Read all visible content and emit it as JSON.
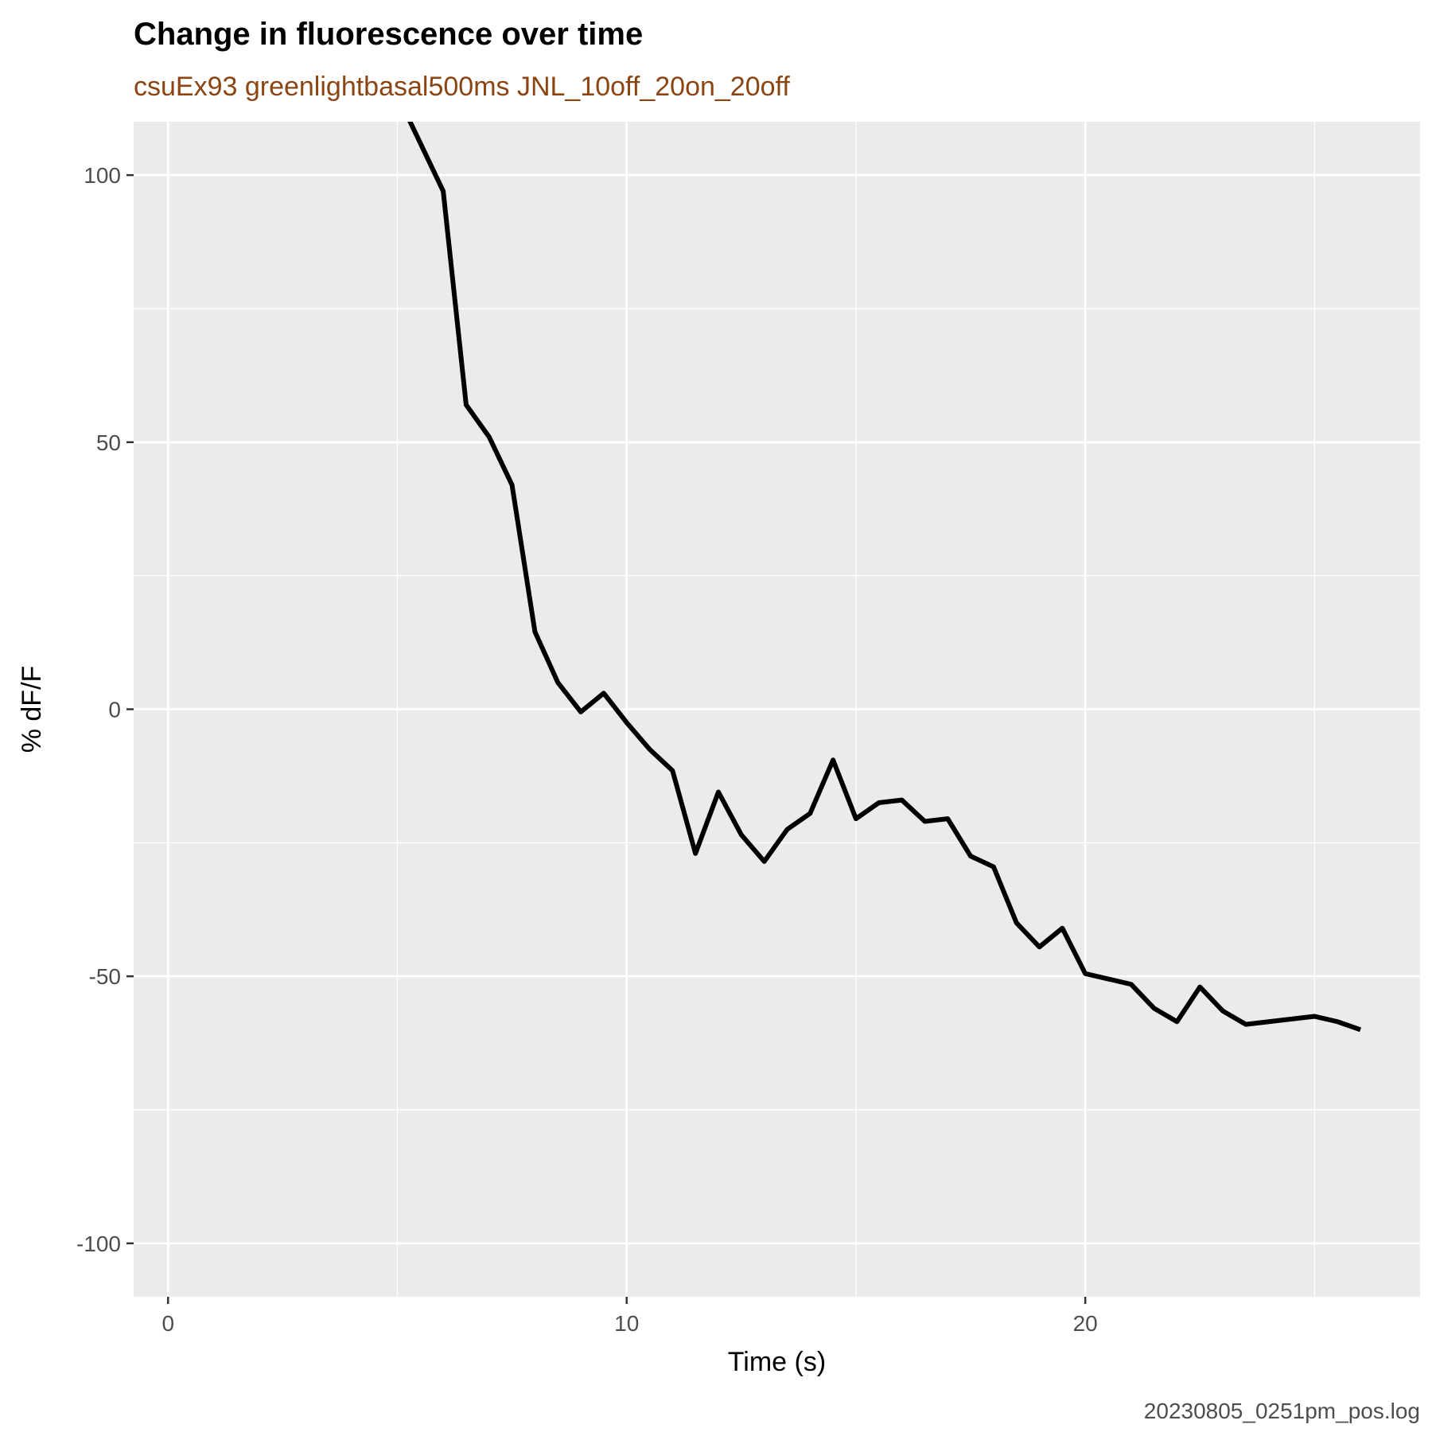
{
  "chart_data": {
    "type": "line",
    "title": "Change in fluorescence over time",
    "subtitle": "csuEx93 greenlightbasal500ms JNL_10off_20on_20off",
    "caption": "20230805_0251pm_pos.log",
    "xlabel": "Time (s)",
    "ylabel": "% dF/F",
    "xlim": [
      -0.75,
      27.3
    ],
    "ylim": [
      -110,
      110
    ],
    "x_ticks": [
      0,
      10,
      20
    ],
    "x_tick_labels": [
      "0",
      "10",
      "20"
    ],
    "x_minor_ticks": [
      5,
      15,
      25
    ],
    "y_ticks": [
      -100,
      -50,
      0,
      50,
      100
    ],
    "y_tick_labels": [
      "-100",
      "-50",
      "0",
      "50",
      "100"
    ],
    "y_minor_ticks": [
      -75,
      -25,
      25,
      75
    ],
    "grid": true,
    "colors": {
      "panel_background": "#ebebeb",
      "grid": "#ffffff",
      "line": "#000000",
      "subtitle": "#8b4513"
    },
    "series": [
      {
        "x": [
          5,
          5.5,
          6,
          6.5,
          7,
          7.5,
          8,
          8.5,
          9,
          9.5,
          10,
          10.5,
          11,
          11.5,
          12,
          12.5,
          13,
          13.5,
          14,
          14.5,
          15,
          15.5,
          16,
          16.5,
          17,
          17.5,
          18,
          18.5,
          19,
          19.5,
          20,
          20.5,
          21,
          21.5,
          22,
          22.5,
          23,
          23.5,
          24,
          24.5,
          25,
          25.5,
          26
        ],
        "y": [
          115,
          106,
          97,
          57,
          51,
          42,
          14.5,
          5,
          -0.5,
          3,
          -2.5,
          -7.5,
          -11.5,
          -27,
          -15.5,
          -23.5,
          -28.5,
          -22.5,
          -19.5,
          -9.5,
          -20.5,
          -17.5,
          -17,
          -21,
          -20.5,
          -27.5,
          -29.5,
          -40,
          -44.5,
          -41,
          -49.5,
          -50.5,
          -51.5,
          -56,
          -58.5,
          -52,
          -56.5,
          -59,
          -58.5,
          -58,
          -57.5,
          -58.5,
          -60
        ]
      }
    ]
  }
}
